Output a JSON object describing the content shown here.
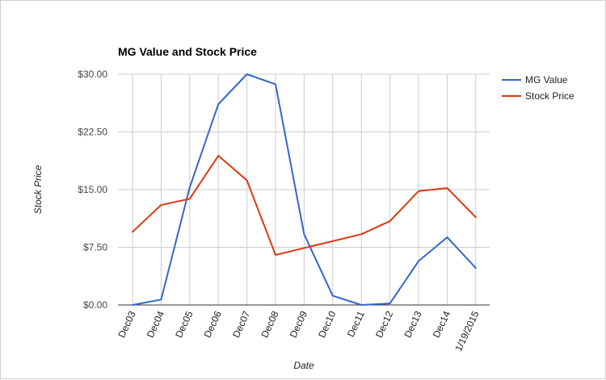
{
  "chart_data": {
    "type": "line",
    "title": "MG Value and Stock Price",
    "xlabel": "Date",
    "ylabel": "Stock Price",
    "categories": [
      "Dec03",
      "Dec04",
      "Dec05",
      "Dec06",
      "Dec07",
      "Dec08",
      "Dec09",
      "Dec10",
      "Dec11",
      "Dec12",
      "Dec13",
      "Dec14",
      "1/19/2015"
    ],
    "y_ticks": [
      "$0.00",
      "$7.50",
      "$15.00",
      "$22.50",
      "$30.00"
    ],
    "ylim": [
      0,
      30
    ],
    "grid": true,
    "legend_position": "right",
    "series": [
      {
        "name": "MG Value",
        "color": "#3366cc",
        "values": [
          0.0,
          0.7,
          15.3,
          26.1,
          30.0,
          28.7,
          9.2,
          1.2,
          0.0,
          0.2,
          5.7,
          8.8,
          4.8
        ]
      },
      {
        "name": "Stock Price",
        "color": "#dc3912",
        "values": [
          9.5,
          13.0,
          13.8,
          19.4,
          16.2,
          6.5,
          7.4,
          8.3,
          9.2,
          10.9,
          14.8,
          15.2,
          11.4
        ]
      }
    ]
  }
}
